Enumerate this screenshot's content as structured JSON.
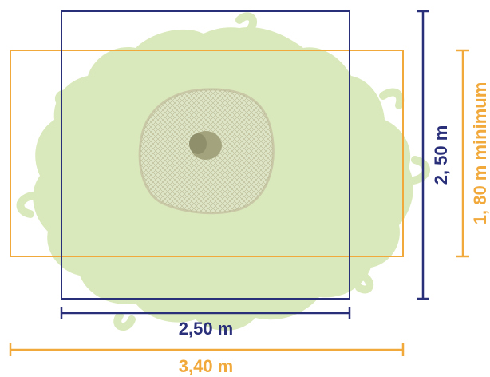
{
  "colors": {
    "navy": "#2a2f7a",
    "orange": "#f2a93b",
    "foliage": "#d6e7b4",
    "net": "#c9c9a8",
    "trunk": "#9a9a78"
  },
  "labels": {
    "inner_width": "2,50 m",
    "outer_width": "3,40 m",
    "inner_height": "2, 50 m",
    "outer_height": "1, 80 m minimum"
  }
}
